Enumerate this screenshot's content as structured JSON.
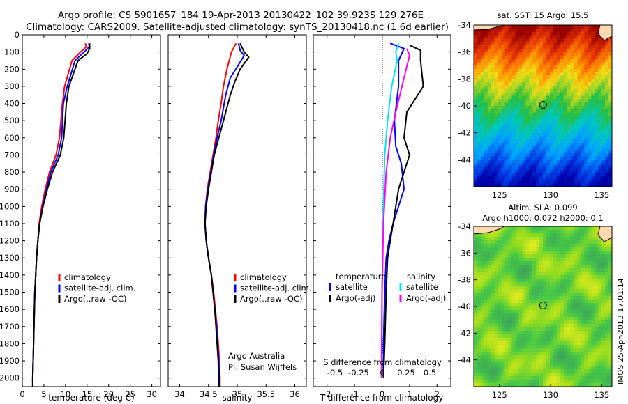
{
  "header": {
    "line1": "Argo profile: CS 5901657_184 19-Apr-2013 20130422_102 39.923S 129.276E",
    "line2": "Climatology: CARS2009. Satellite-adjusted climatology: synTS_20130418.nc (1.6d earlier)"
  },
  "colors": {
    "clim": "#ff0000",
    "sat": "#0000ff",
    "argo": "#000000",
    "sat_s": "#00e5ee",
    "argo_s": "#ff00ff"
  },
  "chart_data": [
    {
      "type": "line",
      "id": "temp",
      "xlabel": "temperature (deg C)",
      "xlim": [
        0,
        32
      ],
      "ylim": [
        2050,
        0
      ],
      "xticks": [
        0,
        5,
        10,
        15,
        20,
        25,
        30
      ],
      "yticks": [
        0,
        100,
        200,
        300,
        400,
        500,
        600,
        700,
        800,
        900,
        1000,
        1100,
        1200,
        1300,
        1400,
        1500,
        1600,
        1700,
        1800,
        1900,
        2000
      ],
      "legend": [
        "climatology",
        "satellite-adj. clim.",
        "Argo(..raw -QC)"
      ],
      "series": [
        {
          "name": "climatology",
          "color": "#ff0000",
          "points": [
            [
              14.6,
              50
            ],
            [
              14.8,
              70
            ],
            [
              13.5,
              100
            ],
            [
              11.5,
              150
            ],
            [
              9.8,
              300
            ],
            [
              9.3,
              400
            ],
            [
              8.6,
              600
            ],
            [
              7.8,
              700
            ],
            [
              6.3,
              800
            ],
            [
              5.3,
              900
            ],
            [
              4.5,
              1000
            ],
            [
              3.9,
              1100
            ],
            [
              3.6,
              1200
            ],
            [
              3.3,
              1300
            ],
            [
              3.1,
              1400
            ],
            [
              2.9,
              1500
            ],
            [
              2.8,
              1600
            ],
            [
              2.7,
              1700
            ],
            [
              2.6,
              1800
            ],
            [
              2.5,
              1900
            ],
            [
              2.4,
              2000
            ],
            [
              2.4,
              2050
            ]
          ]
        },
        {
          "name": "satellite-adj. clim.",
          "color": "#0000ff",
          "points": [
            [
              15.4,
              50
            ],
            [
              15.5,
              70
            ],
            [
              14.3,
              100
            ],
            [
              12.2,
              150
            ],
            [
              10.4,
              300
            ],
            [
              9.5,
              400
            ],
            [
              9.1,
              600
            ],
            [
              8.3,
              700
            ],
            [
              6.6,
              800
            ],
            [
              5.6,
              900
            ],
            [
              4.7,
              1000
            ],
            [
              4.0,
              1100
            ],
            [
              3.6,
              1200
            ],
            [
              3.3,
              1300
            ],
            [
              3.1,
              1400
            ],
            [
              2.9,
              1500
            ],
            [
              2.8,
              1600
            ],
            [
              2.7,
              1700
            ],
            [
              2.6,
              1800
            ],
            [
              2.5,
              1900
            ],
            [
              2.4,
              2000
            ],
            [
              2.4,
              2050
            ]
          ]
        },
        {
          "name": "Argo(..raw -QC)",
          "color": "#000000",
          "points": [
            [
              15.6,
              50
            ],
            [
              15.6,
              80
            ],
            [
              15.0,
              110
            ],
            [
              12.9,
              150
            ],
            [
              10.8,
              300
            ],
            [
              10.2,
              400
            ],
            [
              9.6,
              600
            ],
            [
              8.8,
              700
            ],
            [
              7.0,
              800
            ],
            [
              5.8,
              900
            ],
            [
              4.8,
              1000
            ],
            [
              4.0,
              1100
            ],
            [
              3.6,
              1200
            ],
            [
              3.3,
              1300
            ],
            [
              3.1,
              1400
            ],
            [
              2.9,
              1500
            ],
            [
              2.8,
              1600
            ],
            [
              2.7,
              1700
            ],
            [
              2.6,
              1800
            ],
            [
              2.5,
              1900
            ],
            [
              2.4,
              2000
            ],
            [
              2.4,
              2050
            ]
          ]
        }
      ]
    },
    {
      "type": "line",
      "id": "sal",
      "xlabel": "salinity",
      "xlim": [
        33.8,
        36.2
      ],
      "ylim": [
        2050,
        0
      ],
      "xticks": [
        34,
        34.5,
        35,
        35.5,
        36
      ],
      "legend": [
        "climatology",
        "satellite-adj. clim.",
        "Argo(..raw -QC)"
      ],
      "annotation": [
        "Argo Australia",
        "PI: Susan Wijffels"
      ],
      "series": [
        {
          "name": "climatology",
          "color": "#ff0000",
          "points": [
            [
              34.98,
              50
            ],
            [
              34.9,
              100
            ],
            [
              34.82,
              200
            ],
            [
              34.76,
              300
            ],
            [
              34.72,
              400
            ],
            [
              34.67,
              500
            ],
            [
              34.63,
              600
            ],
            [
              34.58,
              700
            ],
            [
              34.53,
              800
            ],
            [
              34.48,
              900
            ],
            [
              34.45,
              1000
            ],
            [
              34.44,
              1100
            ],
            [
              34.46,
              1200
            ],
            [
              34.5,
              1300
            ],
            [
              34.55,
              1400
            ],
            [
              34.59,
              1500
            ],
            [
              34.62,
              1600
            ],
            [
              34.65,
              1700
            ],
            [
              34.67,
              1800
            ],
            [
              34.69,
              1900
            ],
            [
              34.7,
              2000
            ],
            [
              34.7,
              2050
            ]
          ]
        },
        {
          "name": "satellite-adj. clim.",
          "color": "#0000ff",
          "points": [
            [
              35.02,
              50
            ],
            [
              35.05,
              90
            ],
            [
              35.12,
              120
            ],
            [
              35.05,
              160
            ],
            [
              34.88,
              250
            ],
            [
              34.8,
              350
            ],
            [
              34.72,
              500
            ],
            [
              34.65,
              600
            ],
            [
              34.59,
              700
            ],
            [
              34.54,
              800
            ],
            [
              34.49,
              900
            ],
            [
              34.45,
              1000
            ],
            [
              34.44,
              1100
            ],
            [
              34.46,
              1200
            ],
            [
              34.5,
              1300
            ],
            [
              34.55,
              1400
            ],
            [
              34.58,
              1500
            ],
            [
              34.61,
              1600
            ],
            [
              34.64,
              1700
            ],
            [
              34.66,
              1800
            ],
            [
              34.68,
              1900
            ],
            [
              34.69,
              2000
            ],
            [
              34.69,
              2050
            ]
          ]
        },
        {
          "name": "Argo(..raw -QC)",
          "color": "#000000",
          "points": [
            [
              35.05,
              50
            ],
            [
              35.12,
              100
            ],
            [
              35.2,
              130
            ],
            [
              35.05,
              200
            ],
            [
              34.95,
              280
            ],
            [
              34.88,
              350
            ],
            [
              34.76,
              500
            ],
            [
              34.68,
              600
            ],
            [
              34.6,
              700
            ],
            [
              34.55,
              800
            ],
            [
              34.5,
              900
            ],
            [
              34.46,
              1000
            ],
            [
              34.44,
              1100
            ],
            [
              34.46,
              1200
            ],
            [
              34.5,
              1300
            ],
            [
              34.55,
              1400
            ],
            [
              34.58,
              1500
            ],
            [
              34.61,
              1600
            ],
            [
              34.63,
              1700
            ],
            [
              34.65,
              1800
            ],
            [
              34.67,
              1900
            ],
            [
              34.68,
              2000
            ],
            [
              34.68,
              2050
            ]
          ]
        }
      ]
    },
    {
      "type": "line",
      "id": "diff",
      "xlabel": "T difference from climatology",
      "xlabel2": "S difference from climatology",
      "xlim": [
        -2.5,
        2.5
      ],
      "ylim": [
        2050,
        0
      ],
      "xticks": [
        -2,
        -1,
        0,
        1,
        2
      ],
      "xticklabels": [
        "-2",
        "-1",
        "0",
        "1",
        "2"
      ],
      "xticks2": [
        -0.5,
        -0.25,
        0,
        0.25,
        0.5
      ],
      "xticklabels2": [
        "-0.5",
        "-0.25",
        "0",
        "0.25",
        "0.5"
      ],
      "legend_left_title": "temperature",
      "legend_right_title": "salinity",
      "legend": [
        "satellite",
        "Argo(-adj)",
        "satellite",
        "Argo(-adj)"
      ],
      "series": [
        {
          "name": "satellite",
          "color": "#0000ff",
          "points": [
            [
              0.3,
              50
            ],
            [
              0.8,
              80
            ],
            [
              0.6,
              150
            ],
            [
              0.6,
              300
            ],
            [
              0.45,
              500
            ],
            [
              0.5,
              650
            ],
            [
              0.7,
              750
            ],
            [
              0.8,
              900
            ],
            [
              0.6,
              1000
            ],
            [
              0.4,
              1100
            ],
            [
              0.25,
              1200
            ],
            [
              0.15,
              1300
            ],
            [
              0.1,
              1500
            ],
            [
              0.05,
              1800
            ],
            [
              0.05,
              2000
            ]
          ]
        },
        {
          "name": "Argo(-adj)",
          "color": "#000000",
          "points": [
            [
              1.0,
              60
            ],
            [
              1.4,
              90
            ],
            [
              1.4,
              150
            ],
            [
              1.5,
              300
            ],
            [
              0.9,
              450
            ],
            [
              0.8,
              600
            ],
            [
              1.0,
              700
            ],
            [
              0.8,
              800
            ],
            [
              0.6,
              900
            ],
            [
              0.4,
              1100
            ],
            [
              0.3,
              1200
            ],
            [
              0.2,
              1300
            ],
            [
              0.15,
              1500
            ],
            [
              0.1,
              1800
            ],
            [
              0.05,
              2000
            ]
          ]
        },
        {
          "name": "satellite",
          "color": "#00e5ee",
          "points": [
            [
              0.6,
              50
            ],
            [
              0.5,
              100
            ],
            [
              0.55,
              150
            ],
            [
              0.35,
              300
            ],
            [
              0.2,
              500
            ],
            [
              0.1,
              700
            ],
            [
              0.05,
              1000
            ],
            [
              0.0,
              1500
            ],
            [
              -0.02,
              2000
            ]
          ]
        },
        {
          "name": "Argo(-adj)",
          "color": "#ff00ff",
          "points": [
            [
              0.9,
              80
            ],
            [
              1.0,
              120
            ],
            [
              0.8,
              250
            ],
            [
              0.5,
              450
            ],
            [
              0.3,
              600
            ],
            [
              0.15,
              800
            ],
            [
              0.05,
              1100
            ],
            [
              0.0,
              1500
            ],
            [
              -0.02,
              2000
            ]
          ]
        }
      ]
    },
    {
      "type": "heatmap",
      "id": "sst",
      "title": "sat. SST: 15 Argo: 15.5",
      "xlim": [
        122.5,
        136
      ],
      "ylim": [
        -46,
        -34
      ],
      "xticks": [
        125,
        130,
        135
      ],
      "yticks": [
        -34,
        -36,
        -38,
        -40,
        -42,
        -44
      ],
      "marker": [
        129.276,
        -39.923
      ]
    },
    {
      "type": "heatmap",
      "id": "sla",
      "title": "Altim. SLA: 0.099",
      "title2": "Argo h1000: 0.072 h2000: 0.1",
      "xlim": [
        122.5,
        136
      ],
      "ylim": [
        -46,
        -34
      ],
      "xticks": [
        125,
        130,
        135
      ],
      "yticks": [
        -34,
        -36,
        -38,
        -40,
        -42,
        -44
      ],
      "marker": [
        129.276,
        -39.923
      ]
    }
  ],
  "side_text": "IMOS 25-Apr-2013 17:01:14"
}
